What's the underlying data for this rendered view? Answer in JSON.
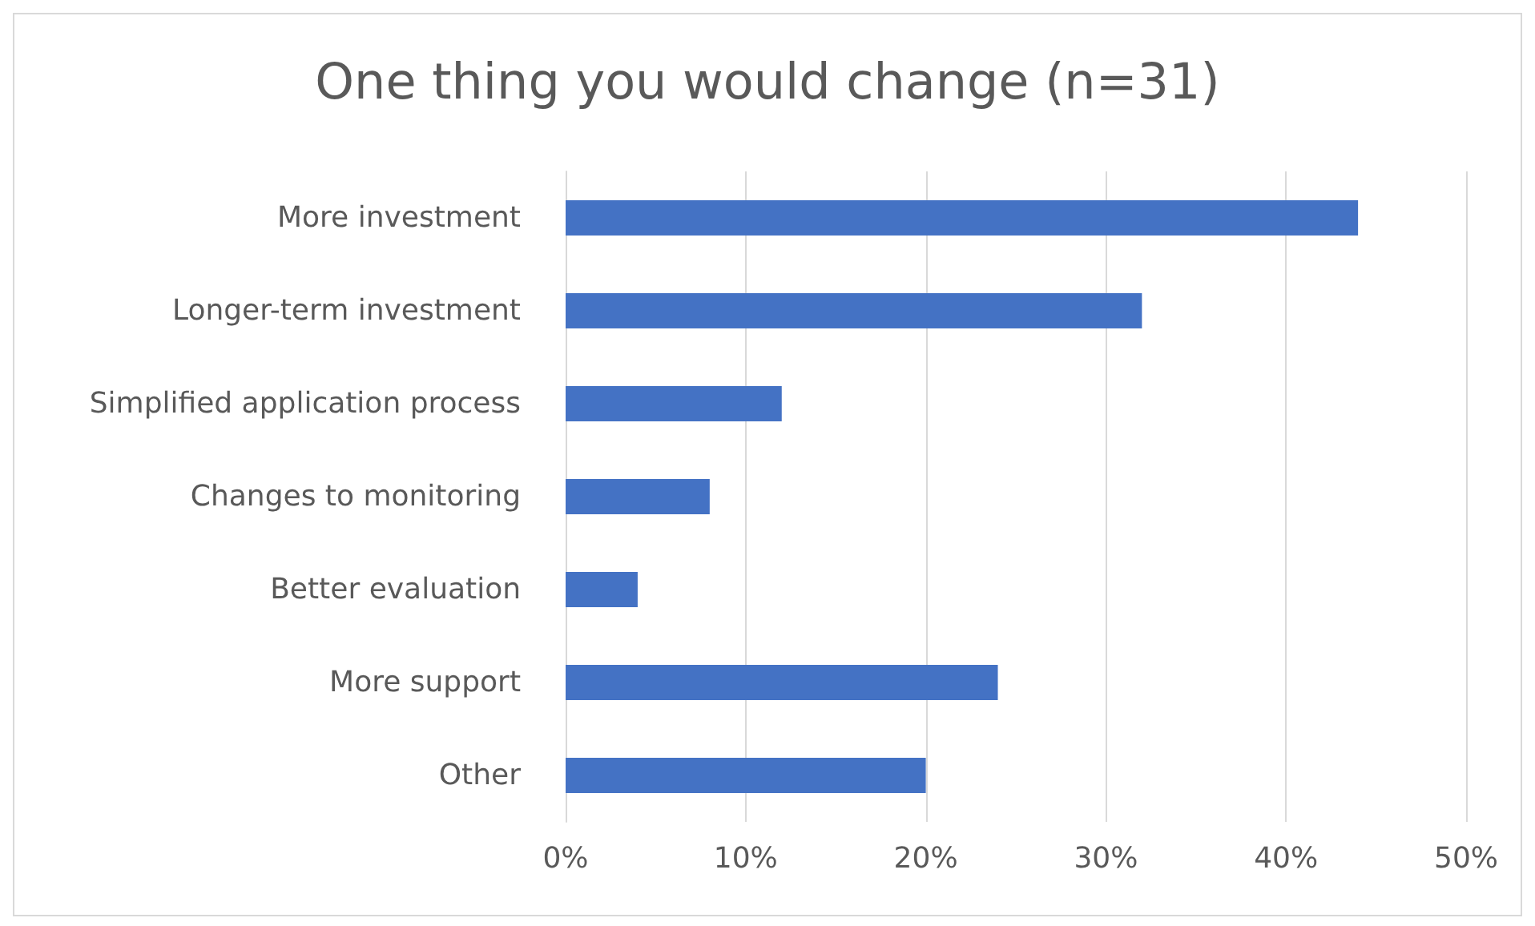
{
  "chart_data": {
    "type": "bar",
    "orientation": "horizontal",
    "title": "One thing you would change (n=31)",
    "categories": [
      "More investment",
      "Longer-term investment",
      "Simplified application process",
      "Changes to monitoring",
      "Better evaluation",
      "More support",
      "Other"
    ],
    "values": [
      44,
      32,
      12,
      8,
      4,
      24,
      20
    ],
    "color": "#4472c4",
    "xlim": [
      0,
      50
    ],
    "xticks": [
      {
        "value": 0,
        "label": "0%"
      },
      {
        "value": 10,
        "label": "10%"
      },
      {
        "value": 20,
        "label": "20%"
      },
      {
        "value": 30,
        "label": "30%"
      },
      {
        "value": 40,
        "label": "40%"
      },
      {
        "value": 50,
        "label": "50%"
      }
    ],
    "grid": "x"
  }
}
